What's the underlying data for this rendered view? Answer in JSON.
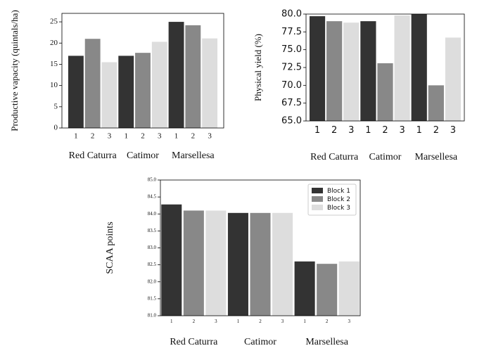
{
  "chart_data": [
    {
      "type": "bar",
      "y_label": "Productive vapacity (quintals/ha)",
      "categories": [
        "Red Caturra",
        "Catimor",
        "Marsellesa"
      ],
      "bar_labels": [
        "1",
        "2",
        "3"
      ],
      "series": [
        {
          "color": "#333333",
          "values": [
            17,
            17,
            25
          ]
        },
        {
          "color": "#888888",
          "values": [
            21,
            17.7,
            24.2
          ]
        },
        {
          "color": "#dddddd",
          "values": [
            15.5,
            20.3,
            21.1
          ]
        }
      ],
      "ylim": [
        0,
        27
      ],
      "yticks": [
        0,
        5,
        10,
        15,
        20,
        25
      ],
      "legend": null
    },
    {
      "type": "bar",
      "y_label": "Physical yield (%)",
      "categories": [
        "Red Caturra",
        "Catimor",
        "Marsellesa"
      ],
      "bar_labels": [
        "1",
        "2",
        "3"
      ],
      "series": [
        {
          "color": "#333333",
          "values": [
            79.7,
            79.0,
            80.0
          ]
        },
        {
          "color": "#888888",
          "values": [
            79.0,
            73.1,
            70.0
          ]
        },
        {
          "color": "#dddddd",
          "values": [
            78.8,
            79.8,
            76.7
          ]
        }
      ],
      "ylim": [
        65,
        80
      ],
      "yticks": [
        {
          "value": 65,
          "label": "65.0"
        },
        {
          "value": 67.5,
          "label": "67.5"
        },
        {
          "value": 70,
          "label": "70.0"
        },
        {
          "value": 72.5,
          "label": "72.5"
        },
        {
          "value": 75,
          "label": "75.0"
        },
        {
          "value": 77.5,
          "label": "77.5"
        },
        {
          "value": 80,
          "label": "80.0"
        }
      ],
      "legend": null
    },
    {
      "type": "bar",
      "y_label": "SCAA points",
      "categories": [
        "Red Caturra",
        "Catimor",
        "Marsellesa"
      ],
      "bar_labels": [
        "1",
        "2",
        "3"
      ],
      "series": [
        {
          "name": "Block 1",
          "color": "#333333",
          "values": [
            84.28,
            84.03,
            82.6
          ]
        },
        {
          "name": "Block 2",
          "color": "#888888",
          "values": [
            84.1,
            84.03,
            82.53
          ]
        },
        {
          "name": "Block 3",
          "color": "#dddddd",
          "values": [
            84.1,
            84.03,
            82.6
          ]
        }
      ],
      "ylim": [
        81,
        85
      ],
      "yticks": [
        {
          "value": 81,
          "label": "81.0"
        },
        {
          "value": 81.5,
          "label": "81.5"
        },
        {
          "value": 82,
          "label": "82.0"
        },
        {
          "value": 82.5,
          "label": "82.5"
        },
        {
          "value": 83,
          "label": "83.0"
        },
        {
          "value": 83.5,
          "label": "83.5"
        },
        {
          "value": 84,
          "label": "84.0"
        },
        {
          "value": 84.5,
          "label": "84.5"
        },
        {
          "value": 85,
          "label": "85.0"
        }
      ],
      "legend": "upper right"
    }
  ]
}
